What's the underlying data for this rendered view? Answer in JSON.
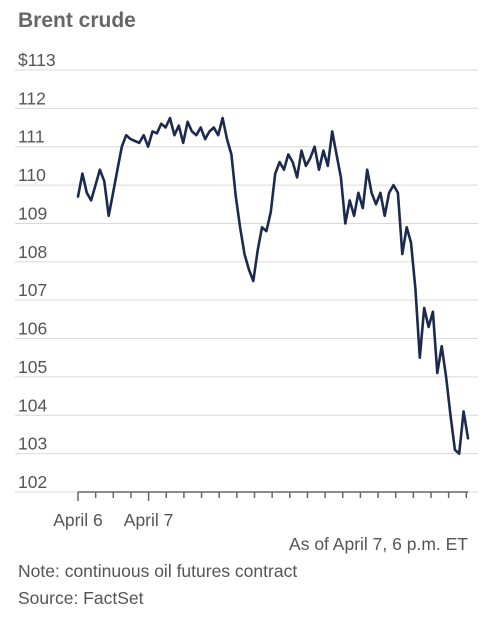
{
  "chart_data": {
    "type": "line",
    "title": "Brent crude",
    "ylim": [
      102,
      113
    ],
    "yticks": [
      {
        "value": 113,
        "label": "$113"
      },
      {
        "value": 112,
        "label": "112"
      },
      {
        "value": 111,
        "label": "111"
      },
      {
        "value": 110,
        "label": "110"
      },
      {
        "value": 109,
        "label": "109"
      },
      {
        "value": 108,
        "label": "108"
      },
      {
        "value": 107,
        "label": "107"
      },
      {
        "value": 106,
        "label": "106"
      },
      {
        "value": 105,
        "label": "105"
      },
      {
        "value": 104,
        "label": "104"
      },
      {
        "value": 103,
        "label": "103"
      },
      {
        "value": 102,
        "label": "102"
      }
    ],
    "xlabels": [
      "April 6",
      "April 7"
    ],
    "grid": true,
    "line_color": "#1b2a4e",
    "series": [
      {
        "values": [
          109.7,
          110.3,
          109.8,
          109.6,
          110.0,
          110.4,
          110.1,
          109.2,
          109.8,
          110.4,
          111.0,
          111.3,
          111.2,
          111.15,
          111.1,
          111.3,
          111.0,
          111.4,
          111.35,
          111.6,
          111.5,
          111.75,
          111.3,
          111.55,
          111.1,
          111.65,
          111.4,
          111.3,
          111.5,
          111.2,
          111.4,
          111.5,
          111.3,
          111.75,
          111.2,
          110.8,
          109.7,
          108.9,
          108.2,
          107.8,
          107.5,
          108.3,
          108.9,
          108.8,
          109.3,
          110.3,
          110.6,
          110.4,
          110.8,
          110.6,
          110.2,
          110.9,
          110.5,
          110.7,
          111.0,
          110.4,
          110.9,
          110.5,
          111.4,
          110.8,
          110.2,
          109.0,
          109.6,
          109.2,
          109.8,
          109.4,
          110.4,
          109.8,
          109.5,
          109.8,
          109.2,
          109.8,
          110.0,
          109.8,
          108.2,
          108.9,
          108.5,
          107.3,
          105.5,
          106.8,
          106.3,
          106.7,
          105.1,
          105.8,
          105.0,
          104.0,
          103.1,
          103.0,
          104.1,
          103.4
        ]
      }
    ]
  },
  "footer": {
    "as_of": "As of April 7, 6 p.m. ET",
    "note": "Note: continuous oil futures contract",
    "source": "Source: FactSet"
  }
}
